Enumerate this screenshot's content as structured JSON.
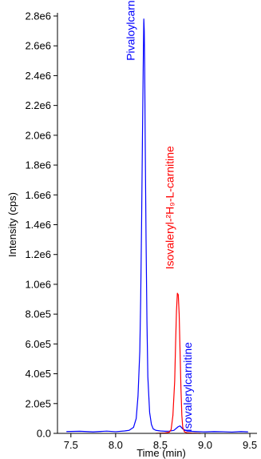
{
  "chart_data": {
    "type": "line",
    "xlabel": "Time (min)",
    "ylabel": "Intensity (cps)",
    "xlim": [
      7.35,
      9.58
    ],
    "ylim": [
      0,
      2800000
    ],
    "x_ticks": [
      {
        "value": 7.5,
        "label": "7.5"
      },
      {
        "value": 8.0,
        "label": "8.0"
      },
      {
        "value": 8.5,
        "label": "8.5"
      },
      {
        "value": 9.0,
        "label": "9.0"
      },
      {
        "value": 9.5,
        "label": "9.5"
      }
    ],
    "y_ticks": [
      {
        "value": 0,
        "label": "0.0"
      },
      {
        "value": 200000,
        "label": "2.0e5"
      },
      {
        "value": 400000,
        "label": "4.0e5"
      },
      {
        "value": 600000,
        "label": "6.0e5"
      },
      {
        "value": 800000,
        "label": "8.0e5"
      },
      {
        "value": 1000000,
        "label": "1.0e6"
      },
      {
        "value": 1200000,
        "label": "1.2e6"
      },
      {
        "value": 1400000,
        "label": "1.4e6"
      },
      {
        "value": 1600000,
        "label": "1.6e6"
      },
      {
        "value": 1800000,
        "label": "1.8e6"
      },
      {
        "value": 2000000,
        "label": "2.0e6"
      },
      {
        "value": 2200000,
        "label": "2.2e6"
      },
      {
        "value": 2400000,
        "label": "2.4e6"
      },
      {
        "value": 2600000,
        "label": "2.6e6"
      },
      {
        "value": 2800000,
        "label": "2.8e6"
      }
    ],
    "grid": false,
    "series": [
      {
        "color": "#0000ff",
        "x": [
          7.45,
          7.6,
          7.75,
          7.9,
          8.0,
          8.1,
          8.15,
          8.2,
          8.23,
          8.25,
          8.27,
          8.28,
          8.29,
          8.3,
          8.31,
          8.315,
          8.32,
          8.325,
          8.33,
          8.34,
          8.35,
          8.36,
          8.38,
          8.4,
          8.42,
          8.45,
          8.5,
          8.55,
          8.6,
          8.65,
          8.7,
          8.72,
          8.75,
          8.8,
          8.9,
          9.0,
          9.1,
          9.2,
          9.3,
          9.4,
          9.48
        ],
        "y": [
          12000,
          14000,
          10000,
          15000,
          11000,
          16000,
          20000,
          40000,
          100000,
          250000,
          550000,
          900000,
          1400000,
          2000000,
          2550000,
          2780000,
          2700000,
          2450000,
          2000000,
          1300000,
          750000,
          380000,
          140000,
          60000,
          30000,
          20000,
          16000,
          14000,
          15000,
          20000,
          45000,
          50000,
          30000,
          15000,
          12000,
          10000,
          12000,
          11000,
          9000,
          12000,
          10000
        ]
      },
      {
        "color": "#ff0000",
        "x": [
          8.45,
          8.55,
          8.6,
          8.62,
          8.64,
          8.66,
          8.67,
          8.68,
          8.69,
          8.7,
          8.71,
          8.72,
          8.73,
          8.74,
          8.75,
          8.77,
          8.8,
          8.85,
          8.95
        ],
        "y": [
          0,
          3000,
          8000,
          25000,
          120000,
          350000,
          600000,
          820000,
          940000,
          930000,
          800000,
          550000,
          300000,
          120000,
          40000,
          10000,
          4000,
          2000,
          0
        ]
      }
    ],
    "annotations": [
      {
        "text": "Pivaloylcarnitine",
        "color": "#0000ff",
        "x": 8.21,
        "y": 2500000
      },
      {
        "text": "Isovaleryl-²H₉-L-carnitine",
        "color": "#ff0000",
        "x": 8.65,
        "y": 1100000
      },
      {
        "text": "Isovalerylcarnitine",
        "color": "#0000ff",
        "x": 8.85,
        "y": 10000
      }
    ]
  }
}
